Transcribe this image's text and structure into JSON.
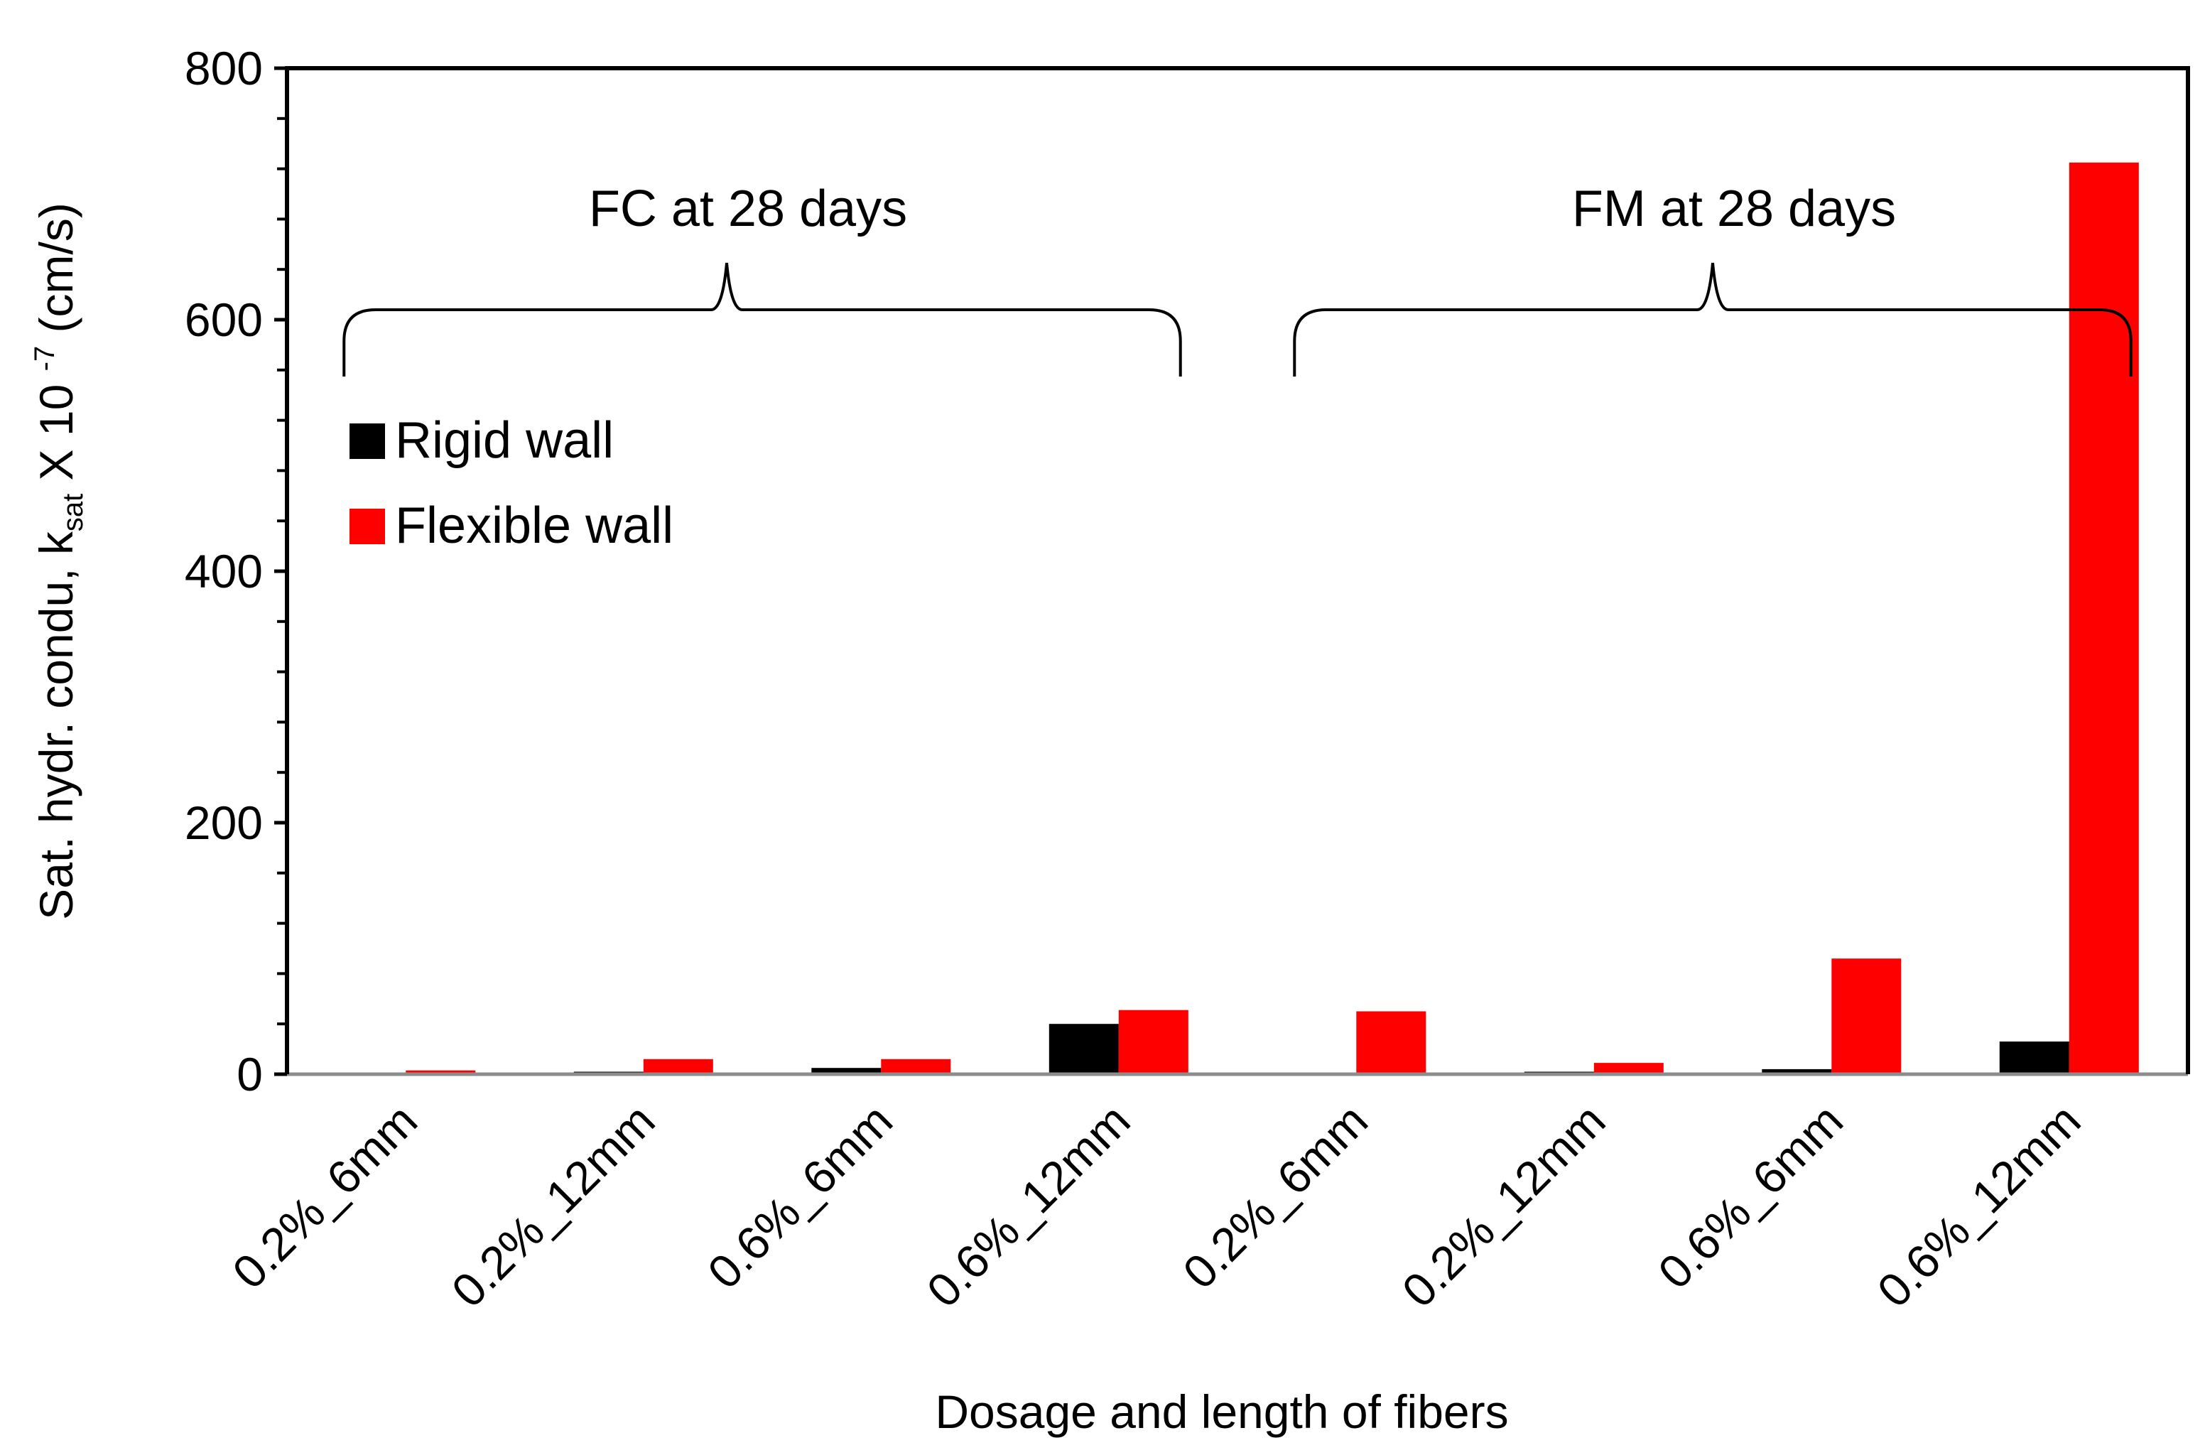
{
  "chart_data": {
    "type": "bar",
    "title": "",
    "xlabel": "Dosage and length of fibers",
    "ylabel": {
      "prefix": "Sat. hydr. condu, k",
      "subscript": "sat",
      "middle": " X 10 ",
      "superscript": "-7",
      "suffix": "  (cm/s)"
    },
    "ylim": [
      0,
      800
    ],
    "yticks": [
      0,
      200,
      400,
      600,
      800
    ],
    "ytick_labels": [
      "0",
      "200",
      "400",
      "600",
      "800"
    ],
    "grid": false,
    "legend_position": "upper-left",
    "categories": [
      "0.2%_6mm",
      "0.2%_12mm",
      "0.6%_6mm",
      "0.6%_12mm",
      "0.2%_6mm",
      "0.2%_12mm",
      "0.6%_6mm",
      "0.6%_12mm"
    ],
    "groups": [
      {
        "label": "FC at 28 days",
        "start": 0,
        "end": 3
      },
      {
        "label": "FM at 28 days",
        "start": 4,
        "end": 7
      }
    ],
    "series": [
      {
        "name": "Rigid wall",
        "color": "#000000",
        "values": [
          0.5,
          2,
          5,
          40,
          0.5,
          2,
          4,
          26
        ]
      },
      {
        "name": "Flexible wall",
        "color": "#ff0000",
        "values": [
          3,
          12,
          12,
          51,
          50,
          9,
          92,
          725
        ]
      }
    ]
  }
}
